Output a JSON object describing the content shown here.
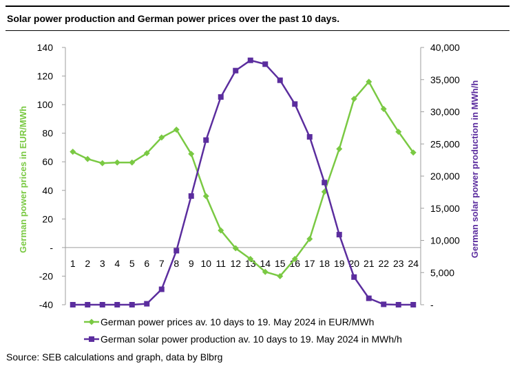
{
  "header": {
    "title": "Solar power production and German power prices over the past 10 days."
  },
  "footer": {
    "source": "Source:  SEB calculations and graph, data by Blbrg"
  },
  "colors": {
    "price": "#7ac943",
    "solar": "#5b2d9e",
    "axis": "#000000",
    "grid": "#9e9e9e"
  },
  "chart_data": {
    "type": "line",
    "grid": false,
    "legend_position": "bottom",
    "x": [
      "1",
      "2",
      "3",
      "4",
      "5",
      "6",
      "7",
      "8",
      "9",
      "10",
      "11",
      "12",
      "13",
      "14",
      "15",
      "16",
      "17",
      "18",
      "19",
      "20",
      "21",
      "22",
      "23",
      "24"
    ],
    "y_left": {
      "label": "German power prices in EUR/MWh",
      "range": [
        -40,
        140
      ],
      "ticks": [
        -40,
        -20,
        0,
        20,
        40,
        60,
        80,
        100,
        120,
        140
      ],
      "tick_labels": [
        "-40",
        "-20",
        "-",
        "20",
        "40",
        "60",
        "80",
        "100",
        "120",
        "140"
      ]
    },
    "y_right": {
      "label": "German solar power production in MWh/h",
      "range": [
        0,
        40000
      ],
      "ticks": [
        0,
        5000,
        10000,
        15000,
        20000,
        25000,
        30000,
        35000,
        40000
      ],
      "tick_labels": [
        "-",
        "5,000",
        "10,000",
        "15,000",
        "20,000",
        "25,000",
        "30,000",
        "35,000",
        "40,000"
      ]
    },
    "series": [
      {
        "name": "German power prices av. 10 days to 19. May 2024 in EUR/MWh",
        "axis": "left",
        "marker": "diamond",
        "color": "#7ac943",
        "values": [
          67,
          62,
          59,
          59.5,
          59.5,
          66,
          77,
          82.5,
          65.5,
          36,
          12,
          -0.5,
          -8,
          -17,
          -20,
          -8,
          6,
          39,
          69,
          104,
          116,
          97,
          81,
          66.5
        ]
      },
      {
        "name": "German solar power production av. 10 days to 19. May 2024 in MWh/h",
        "axis": "right",
        "marker": "square",
        "color": "#5b2d9e",
        "values": [
          0,
          0,
          0,
          0,
          0,
          150,
          2400,
          8400,
          16900,
          25600,
          32300,
          36400,
          38000,
          37400,
          34900,
          31200,
          26100,
          19000,
          10900,
          4300,
          1000,
          60,
          0,
          0
        ]
      }
    ]
  }
}
